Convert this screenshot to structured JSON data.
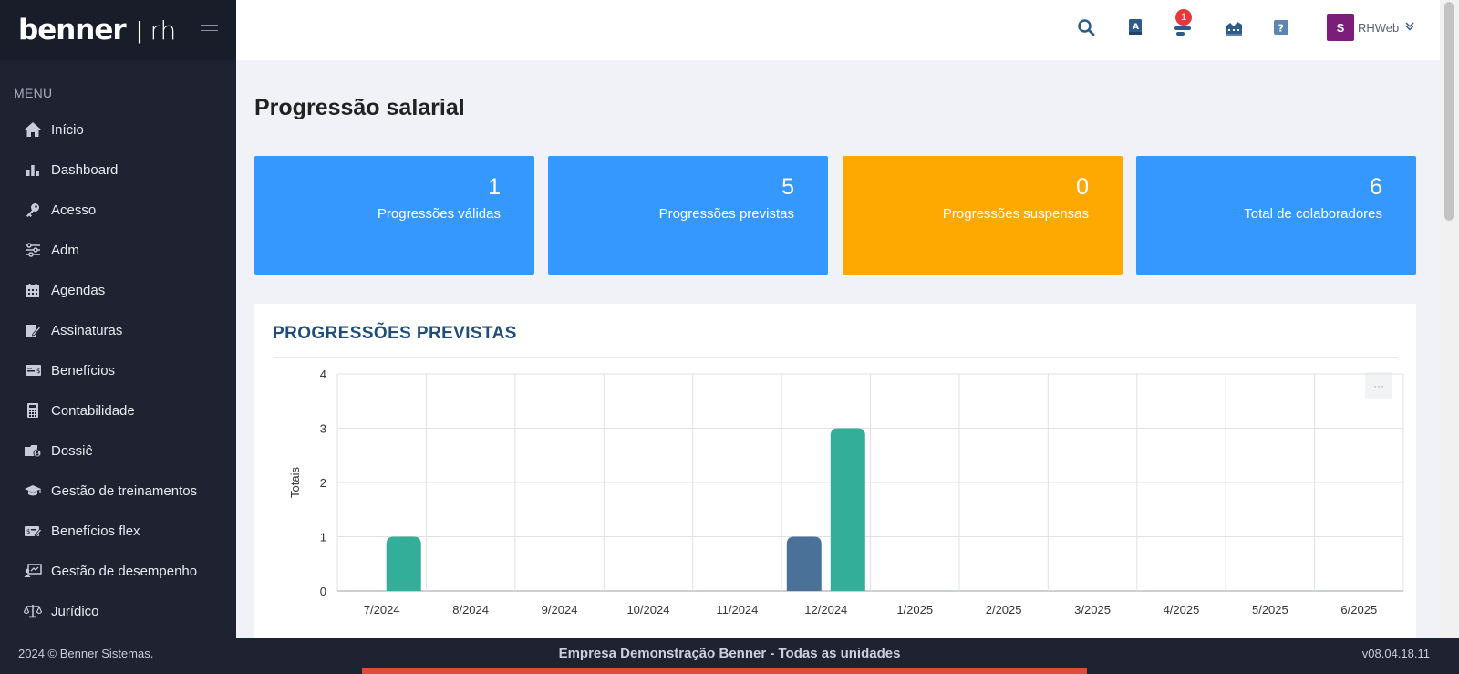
{
  "brand": {
    "logo": "benner",
    "separator": "|",
    "module": "rh"
  },
  "menu": {
    "label": "MENU",
    "items": [
      {
        "label": "Início",
        "icon": "home-icon"
      },
      {
        "label": "Dashboard",
        "icon": "bar-chart-icon"
      },
      {
        "label": "Acesso",
        "icon": "key-icon"
      },
      {
        "label": "Adm",
        "icon": "sliders-icon"
      },
      {
        "label": "Agendas",
        "icon": "calendar-icon"
      },
      {
        "label": "Assinaturas",
        "icon": "signature-icon"
      },
      {
        "label": "Benefícios",
        "icon": "money-card-icon"
      },
      {
        "label": "Contabilidade",
        "icon": "calculator-icon"
      },
      {
        "label": "Dossiê",
        "icon": "dossier-icon"
      },
      {
        "label": "Gestão de treinamentos",
        "icon": "graduation-cap-icon"
      },
      {
        "label": "Benefícios flex",
        "icon": "flex-benefits-icon"
      },
      {
        "label": "Gestão de desempenho",
        "icon": "performance-icon"
      },
      {
        "label": "Jurídico",
        "icon": "scales-icon"
      }
    ]
  },
  "topbar": {
    "notification_count": "1",
    "user_initial": "S",
    "user_name": "RHWeb"
  },
  "page": {
    "title": "Progressão salarial"
  },
  "cards": [
    {
      "value": "1",
      "label": "Progressões válidas",
      "color": "#3598fe"
    },
    {
      "value": "5",
      "label": "Progressões previstas",
      "color": "#3598fe"
    },
    {
      "value": "0",
      "label": "Progressões suspensas",
      "color": "#fea802"
    },
    {
      "value": "6",
      "label": "Total de colaboradores",
      "color": "#3598fe"
    }
  ],
  "panel": {
    "title": "PROGRESSÕES PREVISTAS",
    "menu_glyph": "···"
  },
  "chart_data": {
    "type": "bar",
    "ylabel": "Totais",
    "ylim": [
      0,
      4
    ],
    "yticks": [
      "0",
      "1",
      "2",
      "3",
      "4"
    ],
    "grid": true,
    "categories": [
      "7/2024",
      "8/2024",
      "9/2024",
      "10/2024",
      "11/2024",
      "12/2024",
      "1/2025",
      "2/2025",
      "3/2025",
      "4/2025",
      "5/2025",
      "6/2025"
    ],
    "series": [
      {
        "values": [
          0,
          0,
          0,
          0,
          0,
          1,
          0,
          0,
          0,
          0,
          0,
          0
        ],
        "color": "#4a7298"
      },
      {
        "values": [
          1,
          0,
          0,
          0,
          0,
          3,
          0,
          0,
          0,
          0,
          0,
          0
        ],
        "color": "#33ae99"
      }
    ]
  },
  "footer": {
    "copyright": "2024 © Benner Sistemas.",
    "company": "Empresa Demonstração Benner - Todas as unidades",
    "version": "v08.04.18.11"
  }
}
